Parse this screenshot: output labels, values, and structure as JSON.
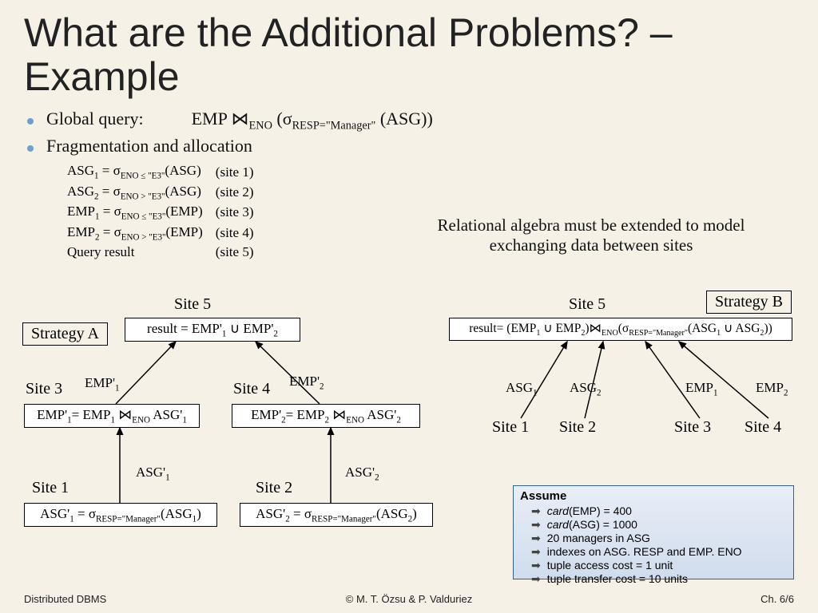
{
  "title": "What are the Additional Problems? – Example",
  "bullets": {
    "global_query_label": "Global query:",
    "global_query_formula": "EMP ⋈<sub>ENO</sub> (σ<sub>RESP=\"Manager\"</sub> (ASG))",
    "frag_label": "Fragmentation and allocation"
  },
  "frag": [
    {
      "l": "ASG<sub>1</sub> = σ<sub>ENO ≤ \"E3\"</sub>(ASG)",
      "r": "(site 1)"
    },
    {
      "l": "ASG<sub>2</sub> = σ<sub>ENO > \"E3\"</sub>(ASG)",
      "r": "(site 2)"
    },
    {
      "l": "EMP<sub>1</sub> = σ<sub>ENO ≤ \"E3\"</sub>(EMP)",
      "r": "(site 3)"
    },
    {
      "l": "EMP<sub>2</sub> = σ<sub>ENO > \"E3\"</sub>(EMP)",
      "r": "(site 4)"
    },
    {
      "l": "Query result",
      "r": "(site 5)"
    }
  ],
  "note": "Relational algebra must be extended to model exchanging data between sites",
  "strategyA": {
    "label": "Strategy A",
    "site5": "Site 5",
    "result_box": "result = EMP'<sub>1</sub> ∪ EMP'<sub>2</sub>",
    "site3": "Site 3",
    "site4": "Site 4",
    "emp1_lbl": "EMP'<sub>1</sub>",
    "emp2_lbl": "EMP'<sub>2</sub>",
    "emp1_box": "EMP'<sub>1</sub>= EMP<sub>1</sub> ⋈<sub>ENO</sub> ASG'<sub>1</sub>",
    "emp2_box": "EMP'<sub>2</sub>= EMP<sub>2</sub> ⋈<sub>ENO</sub> ASG'<sub>2</sub>",
    "site1": "Site 1",
    "site2": "Site 2",
    "asg1_lbl": "ASG'<sub>1</sub>",
    "asg2_lbl": "ASG'<sub>2</sub>",
    "asg1_box": "ASG'<sub>1</sub> = σ<sub>RESP=\"Manager\"</sub>(ASG<sub>1</sub>)",
    "asg2_box": "ASG'<sub>2</sub> = σ<sub>RESP=\"Manager\"</sub>(ASG<sub>2</sub>)"
  },
  "strategyB": {
    "label": "Strategy B",
    "site5": "Site 5",
    "result_box": "result= (EMP<sub>1</sub> ∪ EMP<sub>2</sub>)⋈<sub>ENO</sub>(σ<sub>RESP=\"Manager\"</sub>(ASG<sub>1</sub> ∪ ASG<sub>2</sub>))",
    "asg1": "ASG<sub>1</sub>",
    "asg2": "ASG<sub>2</sub>",
    "emp1": "EMP<sub>1</sub>",
    "emp2": "EMP<sub>2</sub>",
    "site1": "Site 1",
    "site2": "Site 2",
    "site3": "Site 3",
    "site4": "Site 4"
  },
  "assume": {
    "title": "Assume",
    "items": [
      "card(EMP) = 400",
      "card(ASG) = 1000",
      "20 managers in ASG",
      "indexes on ASG. RESP and EMP. ENO",
      "tuple access cost = 1 unit",
      "tuple transfer cost = 10 units"
    ]
  },
  "footer": {
    "left": "Distributed DBMS",
    "center": "© M. T. Özsu & P. Valduriez",
    "right": "Ch. 6/6"
  },
  "italic_words": "card"
}
